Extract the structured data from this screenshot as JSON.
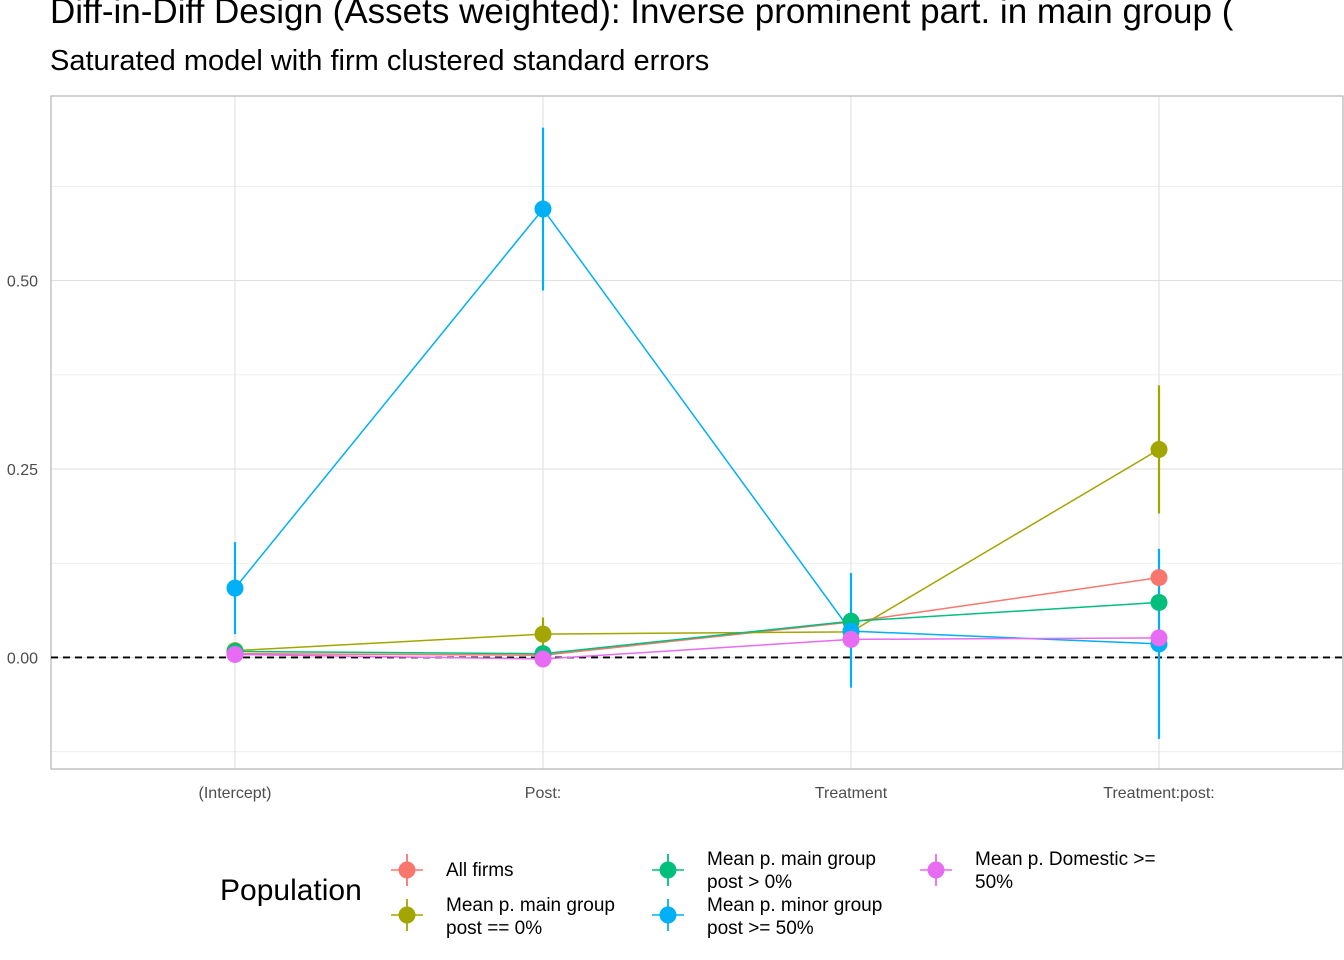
{
  "title": "Diff-in-Diff Design (Assets weighted): Inverse prominent part. in main group (",
  "subtitle": "Saturated model with firm clustered standard errors",
  "chart_data": {
    "type": "scatter",
    "categories": [
      "(Intercept)",
      "Post:",
      "Treatment",
      "Treatment:post:"
    ],
    "ylim": [
      -0.148,
      0.745
    ],
    "yticks": [
      0.0,
      0.25,
      0.5
    ],
    "ytick_labels": [
      "0.00",
      "0.25",
      "0.50"
    ],
    "reference_line": 0.0,
    "grid": true,
    "legend": {
      "title": "Population",
      "placement": "bottom"
    },
    "series": [
      {
        "name": "All firms",
        "color": "#F8766D",
        "values": [
          0.005,
          0.003,
          0.047,
          0.106
        ],
        "lower": [
          0.005,
          0.003,
          0.047,
          0.106
        ],
        "upper": [
          0.005,
          0.003,
          0.047,
          0.106
        ]
      },
      {
        "name": "Mean p. main group post == 0%",
        "color": "#A3A500",
        "values": [
          0.009,
          0.031,
          0.034,
          0.276
        ],
        "lower": [
          0.003,
          0.009,
          0.034,
          0.191
        ],
        "upper": [
          0.015,
          0.053,
          0.034,
          0.361
        ]
      },
      {
        "name": "Mean p. main group post > 0%",
        "color": "#00BF7D",
        "values": [
          0.008,
          0.005,
          0.048,
          0.073
        ],
        "lower": [
          0.008,
          0.005,
          0.048,
          0.073
        ],
        "upper": [
          0.008,
          0.005,
          0.048,
          0.073
        ]
      },
      {
        "name": "Mean p. minor group post >= 50%",
        "color": "#00B0F6",
        "values": [
          0.092,
          0.595,
          0.035,
          0.018
        ],
        "lower": [
          0.031,
          0.487,
          -0.04,
          -0.108
        ],
        "upper": [
          0.153,
          0.703,
          0.112,
          0.144
        ]
      },
      {
        "name": "Mean p. Domestic >= 50%",
        "color": "#E76BF3",
        "values": [
          0.004,
          -0.002,
          0.024,
          0.026
        ],
        "lower": [
          0.004,
          -0.002,
          0.024,
          0.026
        ],
        "upper": [
          0.004,
          -0.002,
          0.024,
          0.026
        ]
      }
    ]
  },
  "legend_items": [
    {
      "line1": "All firms",
      "line2": ""
    },
    {
      "line1": "Mean p. main group",
      "line2": "post == 0%"
    },
    {
      "line1": "Mean p. main group",
      "line2": "post > 0%"
    },
    {
      "line1": "Mean p. minor group",
      "line2": "post >= 50%"
    },
    {
      "line1": "Mean p. Domestic >=",
      "line2": "50%"
    }
  ]
}
